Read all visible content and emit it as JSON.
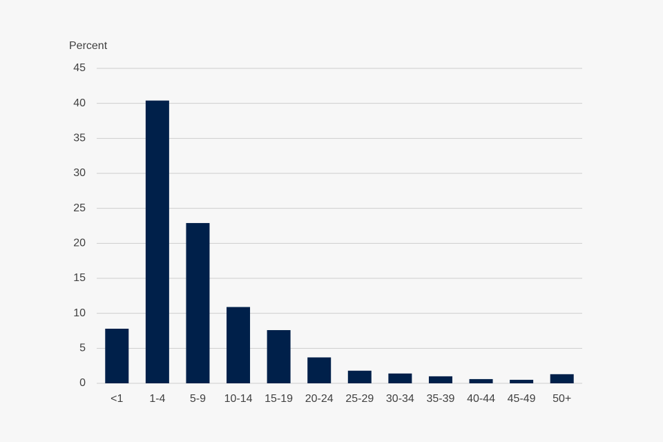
{
  "chart_data": {
    "type": "bar",
    "y_label": "Percent",
    "categories": [
      "<1",
      "1-4",
      "5-9",
      "10-14",
      "15-19",
      "20-24",
      "25-29",
      "30-34",
      "35-39",
      "40-44",
      "45-49",
      "50+"
    ],
    "values": [
      7.8,
      40.4,
      22.9,
      10.9,
      7.6,
      3.7,
      1.8,
      1.4,
      1.0,
      0.6,
      0.5,
      1.3
    ],
    "color": "#00204a",
    "ylim": [
      0,
      45
    ],
    "yticks": [
      0,
      5,
      10,
      15,
      20,
      25,
      30,
      35,
      40,
      45
    ],
    "grid": true
  }
}
